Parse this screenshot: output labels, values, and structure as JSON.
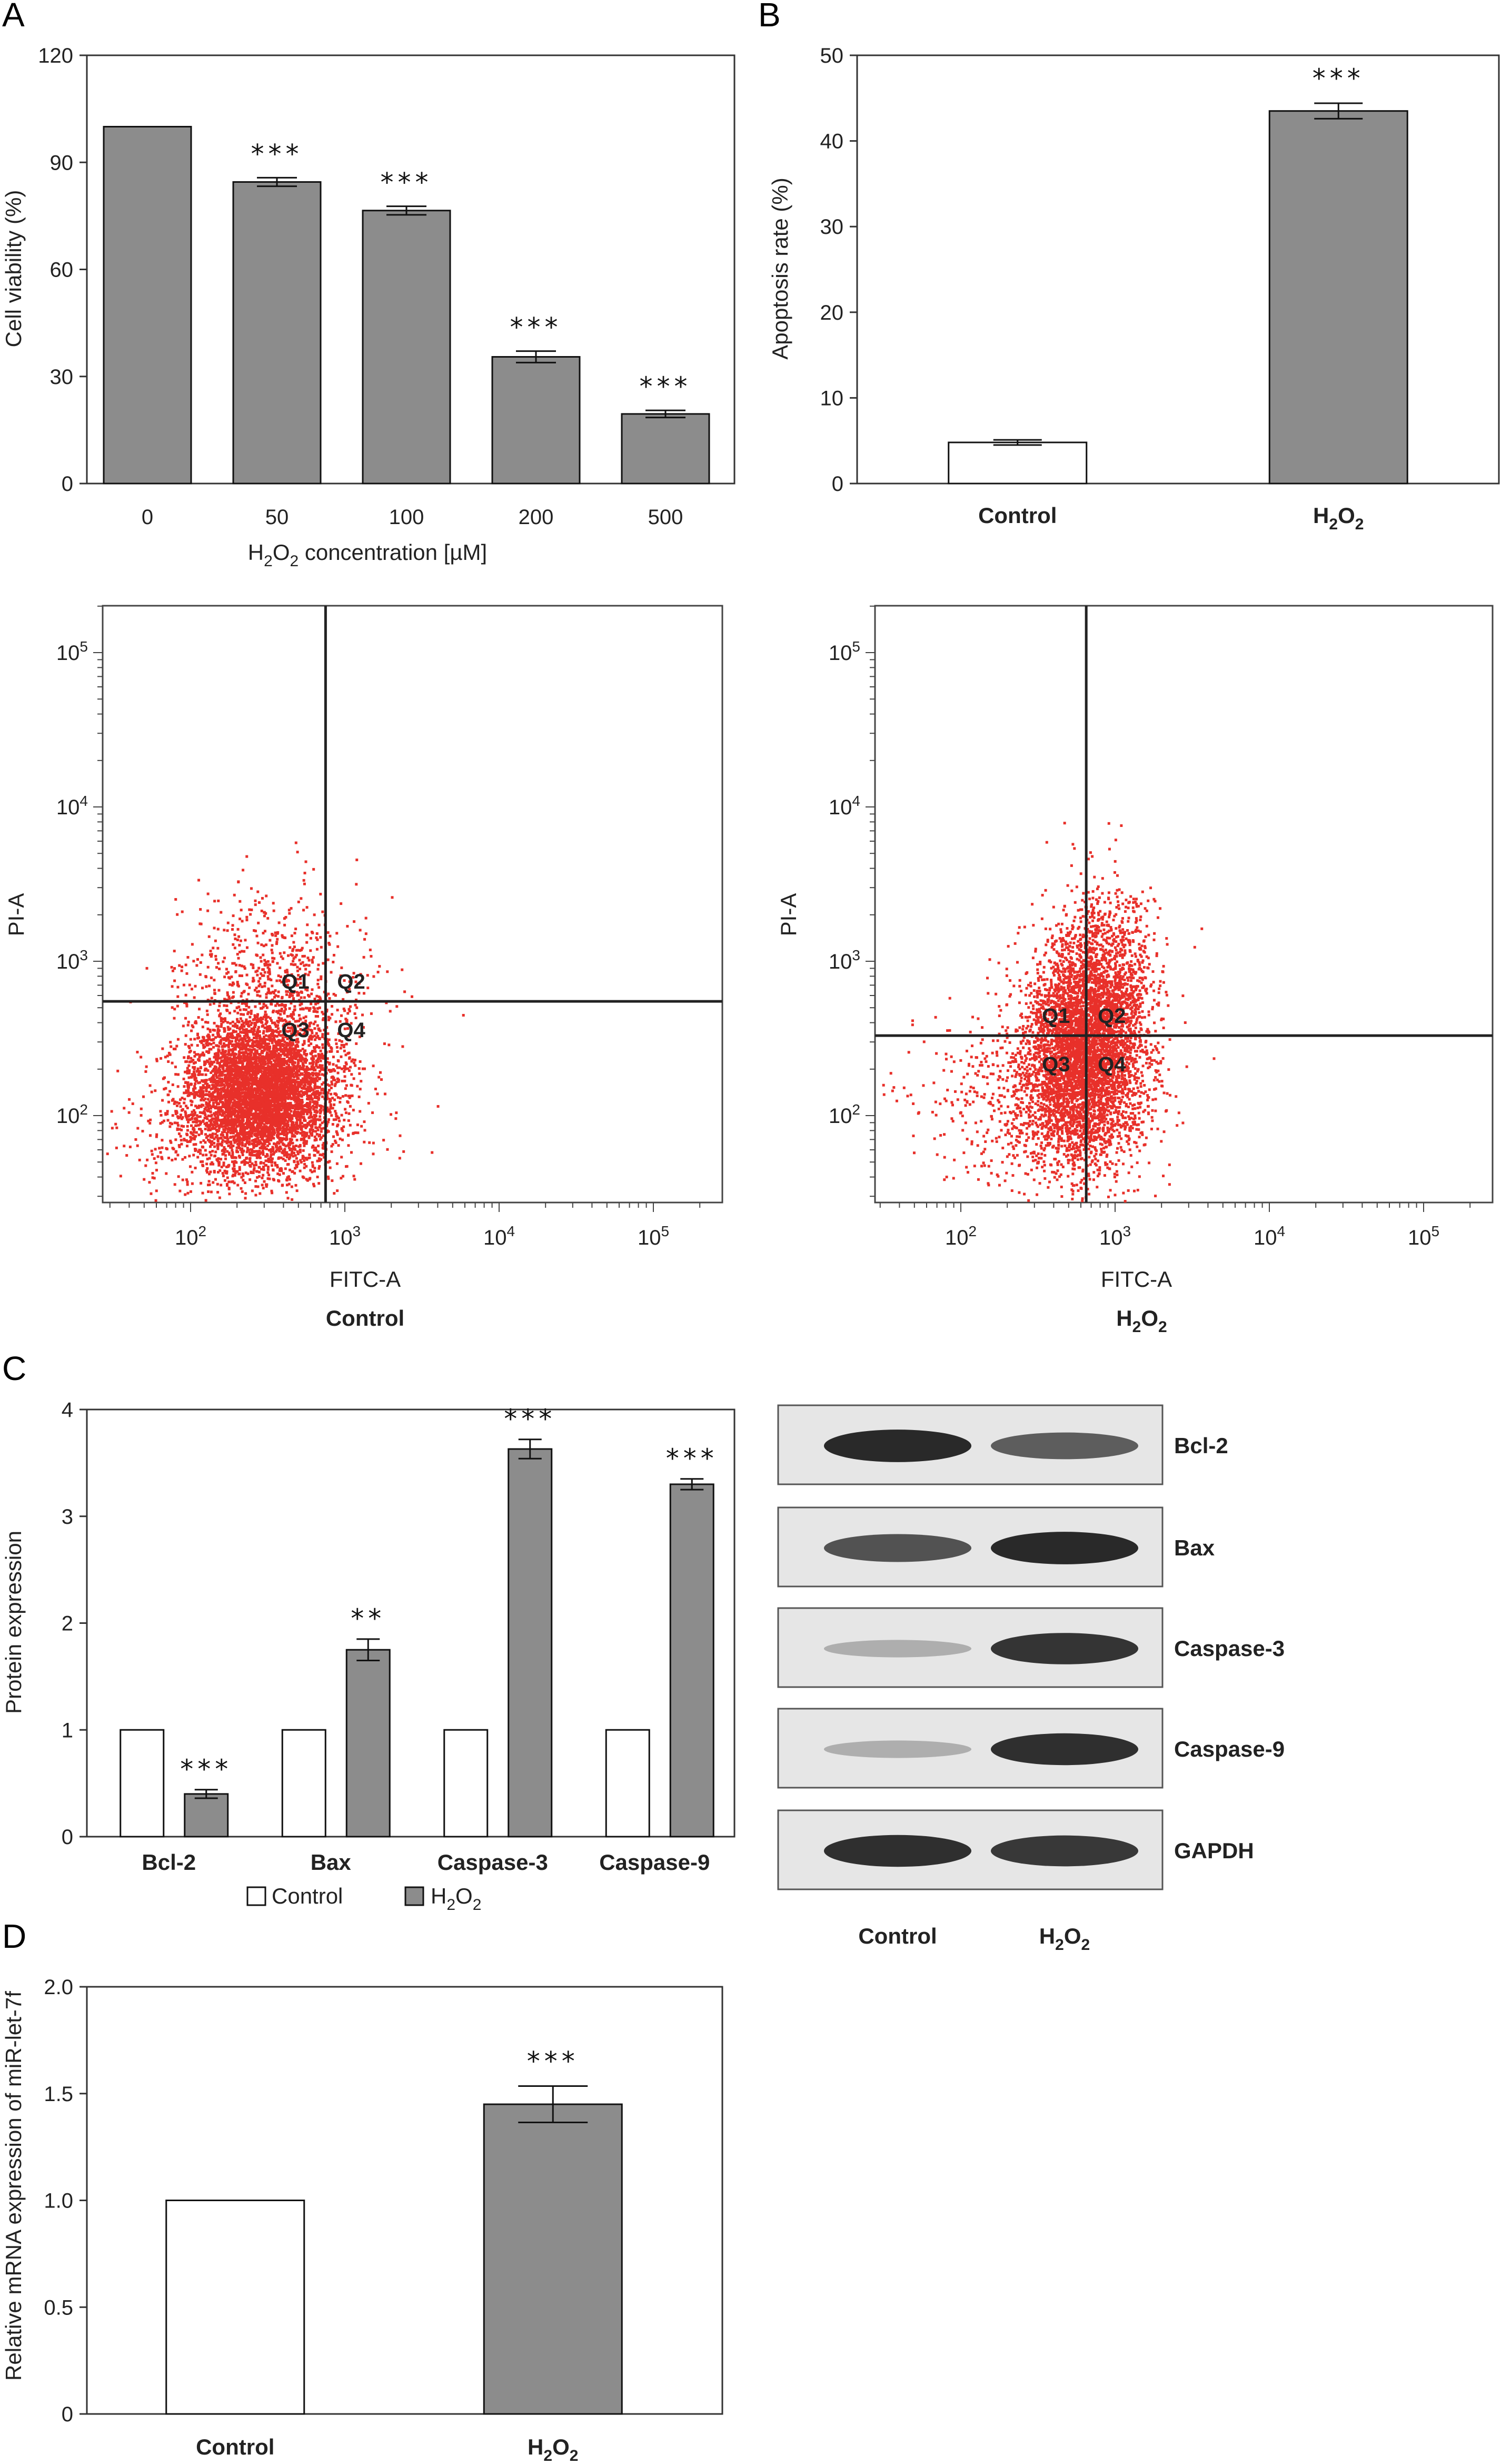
{
  "panels": {
    "A": "A",
    "B": "B",
    "C": "C",
    "D": "D"
  },
  "chart_data": [
    {
      "id": "A",
      "type": "bar",
      "categories": [
        "0",
        "50",
        "100",
        "200",
        "500"
      ],
      "values": [
        100,
        84.5,
        76.5,
        35.5,
        19.5
      ],
      "errors": [
        0,
        1.2,
        1.2,
        1.6,
        1.0
      ],
      "significance": [
        "",
        "***",
        "***",
        "***",
        "***"
      ],
      "xlabel_parts": [
        "H",
        "2",
        "O",
        "2",
        " concentration [µM]"
      ],
      "ylabel": "Cell viability (%)",
      "ylim": [
        0,
        120
      ],
      "yticks": [
        "0",
        "30",
        "60",
        "90",
        "120"
      ],
      "color": "#8c8c8c"
    },
    {
      "id": "B",
      "type": "bar",
      "categories": [
        "Control",
        "H2O2"
      ],
      "category_parts": [
        [
          "Control"
        ],
        [
          "H",
          "2",
          "O",
          "2"
        ]
      ],
      "values": [
        4.8,
        43.5
      ],
      "errors": [
        0.3,
        0.9
      ],
      "significance": [
        "",
        "***"
      ],
      "fills": [
        "#ffffff",
        "#8c8c8c"
      ],
      "ylabel": "Apoptosis rate (%)",
      "ylim": [
        0,
        50
      ],
      "yticks": [
        "0",
        "10",
        "20",
        "30",
        "40",
        "50"
      ]
    },
    {
      "id": "flow-control",
      "type": "scatter",
      "caption": "Control",
      "xlabel": "FITC-A",
      "ylabel": "PI-A",
      "axis_scale": "log",
      "tick_exponents": [
        "2",
        "3",
        "4",
        "5"
      ],
      "quadrant_labels": [
        "Q1",
        "Q2",
        "Q3",
        "Q4"
      ],
      "gate_x": 750,
      "gate_y": 550,
      "point_color": "#e8302a"
    },
    {
      "id": "flow-h2o2",
      "type": "scatter",
      "caption_parts": [
        "H",
        "2",
        "O",
        "2"
      ],
      "xlabel": "FITC-A",
      "ylabel": "PI-A",
      "axis_scale": "log",
      "tick_exponents": [
        "2",
        "3",
        "4",
        "5"
      ],
      "quadrant_labels": [
        "Q1",
        "Q2",
        "Q3",
        "Q4"
      ],
      "gate_x": 650,
      "gate_y": 330,
      "point_color": "#e8302a"
    },
    {
      "id": "C",
      "type": "bar",
      "categories": [
        "Bcl-2",
        "Bax",
        "Caspase-3",
        "Caspase-9"
      ],
      "series": [
        {
          "name": "Control",
          "values": [
            1,
            1,
            1,
            1
          ],
          "errors": [
            0,
            0,
            0,
            0
          ],
          "color": "#ffffff"
        },
        {
          "name": "H2O2",
          "name_parts": [
            "H",
            "2",
            "O",
            "2"
          ],
          "values": [
            0.4,
            1.75,
            3.63,
            3.3
          ],
          "errors": [
            0.04,
            0.1,
            0.09,
            0.05
          ],
          "color": "#8c8c8c"
        }
      ],
      "significance": [
        "***",
        "**",
        "***",
        "***"
      ],
      "ylabel": "Protein expression",
      "ylim": [
        0,
        4
      ],
      "yticks": [
        "0",
        "1",
        "2",
        "3",
        "4"
      ],
      "legend": "bottom"
    },
    {
      "id": "D",
      "type": "bar",
      "categories": [
        "Control",
        "H2O2"
      ],
      "category_parts": [
        [
          "Control"
        ],
        [
          "H",
          "2",
          "O",
          "2"
        ]
      ],
      "values": [
        1.0,
        1.45
      ],
      "errors": [
        0,
        0.085
      ],
      "significance": [
        "",
        "***"
      ],
      "fills": [
        "#ffffff",
        "#8c8c8c"
      ],
      "ylabel": "Relative mRNA expression of miR-let-7f",
      "ylim": [
        0,
        2.0
      ],
      "yticks": [
        "0",
        "0.5",
        "1.0",
        "1.5",
        "2.0"
      ]
    }
  ],
  "western_blot": {
    "proteins": [
      "Bcl-2",
      "Bax",
      "Caspase-3",
      "Caspase-9",
      "GAPDH"
    ],
    "lanes": [
      "Control"
    ],
    "lane2_parts": [
      "H",
      "2",
      "O",
      "2"
    ],
    "band_intensity": {
      "Bcl-2": [
        0.95,
        0.7
      ],
      "Bax": [
        0.75,
        0.95
      ],
      "Caspase-3": [
        0.3,
        0.9
      ],
      "Caspase-9": [
        0.3,
        0.92
      ],
      "GAPDH": [
        0.92,
        0.88
      ]
    }
  }
}
